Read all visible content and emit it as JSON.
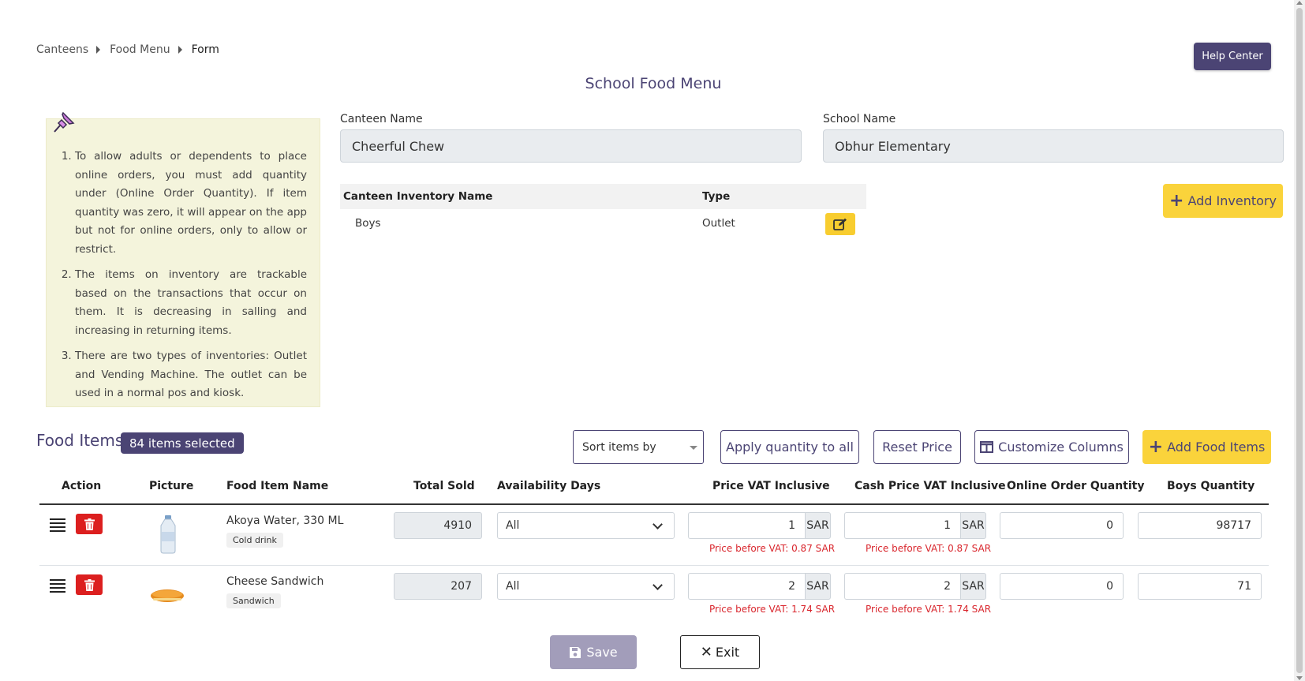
{
  "breadcrumb": {
    "items": [
      "Canteens",
      "Food Menu"
    ],
    "current": "Form"
  },
  "header": {
    "help_label": "Help Center",
    "title": "School Food Menu"
  },
  "notes": [
    "To allow adults or dependents to place online orders, you must add quantity under (Online Order Quantity). If item quantity was zero, it will appear on the app but not for online orders, only to allow or restrict.",
    "The items on inventory are trackable based on the transactions that occur on them. It is decreasing in salling and increasing in returning items.",
    "There are two types of inventories: Outlet and Vending Machine. The outlet can be used in a normal pos and kiosk."
  ],
  "form": {
    "canteen_label": "Canteen Name",
    "canteen_value": "Cheerful Chew",
    "school_label": "School Name",
    "school_value": "Obhur Elementary"
  },
  "inventory": {
    "headers": {
      "name": "Canteen Inventory Name",
      "type": "Type"
    },
    "rows": [
      {
        "name": "Boys",
        "type": "Outlet"
      }
    ],
    "add_label": "Add Inventory"
  },
  "food": {
    "title": "Food Items",
    "badge": "84 items selected",
    "sort_placeholder": "Sort items by",
    "apply_label": "Apply quantity to all",
    "reset_label": "Reset Price",
    "customize_label": "Customize Columns",
    "add_label": "Add Food Items",
    "headers": {
      "action": "Action",
      "picture": "Picture",
      "name": "Food Item Name",
      "sold": "Total Sold",
      "days": "Availability Days",
      "price": "Price VAT Inclusive",
      "cash": "Cash Price VAT Inclusive",
      "online": "Online Order Quantity",
      "boys": "Boys Quantity"
    },
    "currency": "SAR",
    "rows": [
      {
        "name": "Akoya Water, 330 ML",
        "tag": "Cold drink",
        "sold": "4910",
        "days": "All",
        "price": "1",
        "cash": "1",
        "price_note": "Price before VAT: 0.87 SAR",
        "cash_note": "Price before VAT: 0.87 SAR",
        "online": "0",
        "boys": "98717"
      },
      {
        "name": "Cheese Sandwich",
        "tag": "Sandwich",
        "sold": "207",
        "days": "All",
        "price": "2",
        "cash": "2",
        "price_note": "Price before VAT: 1.74 SAR",
        "cash_note": "Price before VAT: 1.74 SAR",
        "online": "0",
        "boys": "71"
      }
    ]
  },
  "footer": {
    "save_label": "Save",
    "exit_label": "Exit"
  },
  "colors": {
    "primary": "#4b4474",
    "accent": "#fad33b",
    "danger": "#dc1f1f",
    "note_bg": "#f4f4dc",
    "warning_text": "#d9262d"
  }
}
